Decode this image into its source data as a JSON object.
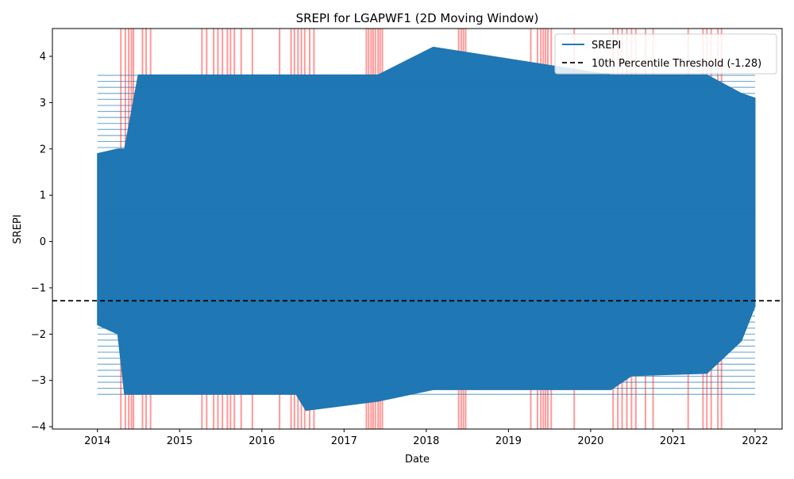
{
  "chart_data": {
    "type": "line",
    "title": "SREPI for LGAPWF1 (2D Moving Window)",
    "xlabel": "Date",
    "ylabel": "SREPI",
    "x_ticks": [
      "2014",
      "2015",
      "2016",
      "2017",
      "2018",
      "2019",
      "2020",
      "2021",
      "2022"
    ],
    "y_ticks": [
      "4",
      "3",
      "2",
      "1",
      "0",
      "−1",
      "−2",
      "−3",
      "−4"
    ],
    "xlim": [
      "2013-06-15",
      "2022-05-01"
    ],
    "ylim": [
      -4.05,
      4.6
    ],
    "grid": false,
    "legend_position": "top-right",
    "series": [
      {
        "name": "SREPI",
        "color": "#1f77b4",
        "x_start": "2014-01-01",
        "x_end": "2022-01-01",
        "band_min": -3.3,
        "band_max": 3.6,
        "envelope": [
          {
            "x": "2014-01-01",
            "min": -1.8,
            "max": 1.9
          },
          {
            "x": "2014-04-01",
            "min": -2.0,
            "max": 2.0
          },
          {
            "x": "2014-05-01",
            "min": -3.3,
            "max": 2.0
          },
          {
            "x": "2014-07-01",
            "min": -3.3,
            "max": 3.6
          },
          {
            "x": "2016-06-01",
            "min": -3.3,
            "max": 3.6
          },
          {
            "x": "2016-07-15",
            "min": -3.65,
            "max": 3.6
          },
          {
            "x": "2017-06-01",
            "min": -3.45,
            "max": 3.6
          },
          {
            "x": "2018-02-01",
            "min": -3.2,
            "max": 4.2
          },
          {
            "x": "2020-04-01",
            "min": -3.2,
            "max": 3.6
          },
          {
            "x": "2020-07-01",
            "min": -2.9,
            "max": 3.6
          },
          {
            "x": "2021-06-01",
            "min": -2.85,
            "max": 3.6
          },
          {
            "x": "2021-11-01",
            "min": -2.15,
            "max": 3.2
          },
          {
            "x": "2022-01-01",
            "min": -1.4,
            "max": 3.1
          }
        ]
      },
      {
        "name": "10th Percentile Threshold (-1.28)",
        "color": "#000000",
        "style": "dashed",
        "y": -1.28
      }
    ],
    "drought_periods": {
      "color": "#ff0000",
      "dates": [
        "2014-04-15",
        "2014-05-05",
        "2014-05-20",
        "2014-06-01",
        "2014-06-10",
        "2014-07-20",
        "2014-08-05",
        "2014-08-25",
        "2015-04-10",
        "2015-05-01",
        "2015-06-01",
        "2015-06-20",
        "2015-07-10",
        "2015-08-01",
        "2015-08-15",
        "2015-09-01",
        "2015-10-01",
        "2015-11-20",
        "2016-03-20",
        "2016-05-10",
        "2016-05-25",
        "2016-06-10",
        "2016-06-25",
        "2016-07-10",
        "2016-08-01",
        "2016-08-20",
        "2017-04-10",
        "2017-04-20",
        "2017-05-01",
        "2017-05-10",
        "2017-05-20",
        "2017-06-01",
        "2017-06-10",
        "2017-06-20",
        "2018-05-25",
        "2018-06-05",
        "2018-06-15",
        "2018-06-25",
        "2019-04-10",
        "2019-05-10",
        "2019-05-25",
        "2019-06-05",
        "2019-06-15",
        "2019-06-25",
        "2019-07-10",
        "2019-10-20",
        "2020-04-10",
        "2020-05-01",
        "2020-05-20",
        "2020-06-10",
        "2020-07-01",
        "2020-07-20",
        "2020-09-01",
        "2020-10-05",
        "2021-03-10",
        "2021-05-15",
        "2021-06-01",
        "2021-06-20",
        "2021-07-20",
        "2021-08-05"
      ]
    }
  }
}
